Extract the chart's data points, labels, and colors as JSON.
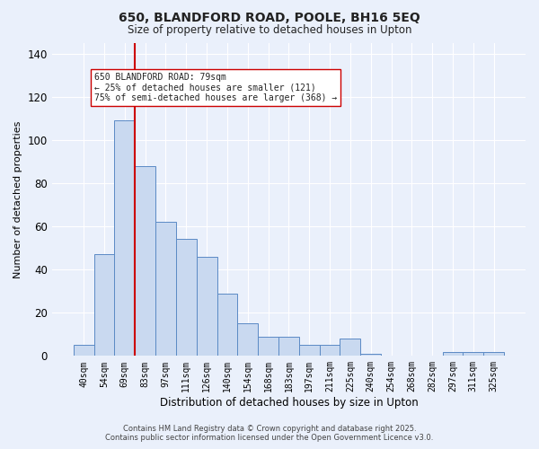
{
  "title": "650, BLANDFORD ROAD, POOLE, BH16 5EQ",
  "subtitle": "Size of property relative to detached houses in Upton",
  "xlabel": "Distribution of detached houses by size in Upton",
  "ylabel": "Number of detached properties",
  "bin_labels": [
    "40sqm",
    "54sqm",
    "69sqm",
    "83sqm",
    "97sqm",
    "111sqm",
    "126sqm",
    "140sqm",
    "154sqm",
    "168sqm",
    "183sqm",
    "197sqm",
    "211sqm",
    "225sqm",
    "240sqm",
    "254sqm",
    "268sqm",
    "282sqm",
    "297sqm",
    "311sqm",
    "325sqm"
  ],
  "bar_values": [
    5,
    47,
    109,
    88,
    62,
    54,
    46,
    29,
    15,
    9,
    9,
    5,
    5,
    8,
    1,
    0,
    0,
    0,
    2,
    2,
    2
  ],
  "bar_color": "#c9d9f0",
  "bar_edge_color": "#5b8ac5",
  "bg_color": "#eaf0fb",
  "grid_color": "#ffffff",
  "vline_x_idx": 2.5,
  "vline_color": "#cc0000",
  "annotation_text": "650 BLANDFORD ROAD: 79sqm\n← 25% of detached houses are smaller (121)\n75% of semi-detached houses are larger (368) →",
  "annotation_box_color": "#ffffff",
  "annotation_box_edge": "#cc0000",
  "ylim": [
    0,
    145
  ],
  "yticks": [
    0,
    20,
    40,
    60,
    80,
    100,
    120,
    140
  ],
  "footer_line1": "Contains HM Land Registry data © Crown copyright and database right 2025.",
  "footer_line2": "Contains public sector information licensed under the Open Government Licence v3.0."
}
